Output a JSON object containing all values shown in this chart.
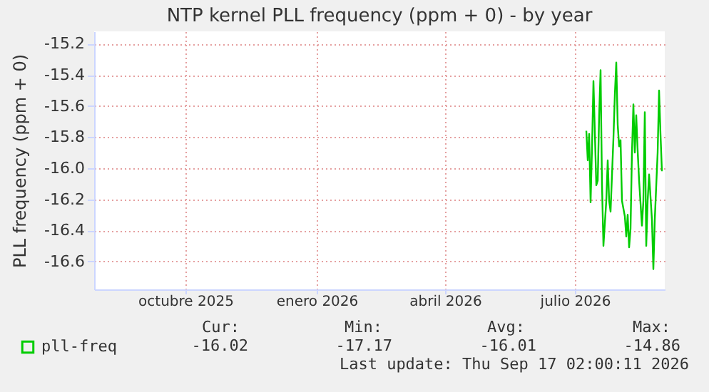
{
  "chart_data": {
    "type": "line",
    "title": "NTP kernel PLL frequency (ppm + 0) - by year",
    "ylabel": "PLL frequency (ppm + 0)",
    "x": [
      "2026-07-24",
      "2026-07-25",
      "2026-07-26",
      "2026-07-27",
      "2026-07-28",
      "2026-07-29",
      "2026-07-31",
      "2026-08-01",
      "2026-08-02",
      "2026-08-03",
      "2026-08-04",
      "2026-08-05",
      "2026-08-07",
      "2026-08-08",
      "2026-08-09",
      "2026-08-10",
      "2026-08-12",
      "2026-08-13",
      "2026-08-14",
      "2026-08-15",
      "2026-08-16",
      "2026-08-17",
      "2026-08-18",
      "2026-08-20",
      "2026-08-21",
      "2026-08-22",
      "2026-08-23",
      "2026-08-24",
      "2026-08-25",
      "2026-08-26",
      "2026-08-27",
      "2026-08-28",
      "2026-08-29",
      "2026-08-30",
      "2026-09-01",
      "2026-09-02",
      "2026-09-03",
      "2026-09-04",
      "2026-09-05",
      "2026-09-06",
      "2026-09-08",
      "2026-09-09",
      "2026-09-10",
      "2026-09-12",
      "2026-09-13",
      "2026-09-14",
      "2026-09-15"
    ],
    "series": [
      {
        "name": "pll-freq",
        "color": "#00cc00",
        "values": [
          -15.76,
          -15.95,
          -15.78,
          -16.22,
          -15.87,
          -15.44,
          -16.11,
          -16.08,
          -15.66,
          -15.37,
          -16.11,
          -16.5,
          -16.21,
          -15.95,
          -16.21,
          -16.28,
          -15.81,
          -15.53,
          -15.32,
          -15.72,
          -15.86,
          -15.82,
          -16.21,
          -16.31,
          -16.44,
          -16.3,
          -16.51,
          -16.39,
          -15.9,
          -15.59,
          -15.9,
          -15.66,
          -15.89,
          -16.08,
          -16.37,
          -16.21,
          -15.64,
          -16.5,
          -16.21,
          -16.04,
          -16.33,
          -16.65,
          -16.33,
          -15.9,
          -15.5,
          -15.78,
          -16.02
        ]
      }
    ],
    "xlim": [
      "2025-08-13",
      "2026-09-17"
    ],
    "xticks": [
      {
        "value": "2025-10-16",
        "label": "octubre 2025"
      },
      {
        "value": "2026-01-16",
        "label": "enero 2026"
      },
      {
        "value": "2026-04-16",
        "label": "abril 2026"
      },
      {
        "value": "2026-07-16",
        "label": "julio 2026"
      }
    ],
    "ylim": [
      -16.78,
      -15.12
    ],
    "yticks": [
      -16.6,
      -16.4,
      -16.2,
      {
        "value": -16,
        "label": "-16.0"
      },
      -15.8,
      -15.6,
      -15.4,
      -15.2
    ],
    "grid": true,
    "legend": "bottom left",
    "annotations": [
      "Cur:",
      "Min:",
      "Avg:",
      "Max:",
      "-16.02",
      "-17.17",
      "-16.01",
      "-14.86",
      "Last update: Thu Sep 17 02:00:11 2026"
    ]
  }
}
